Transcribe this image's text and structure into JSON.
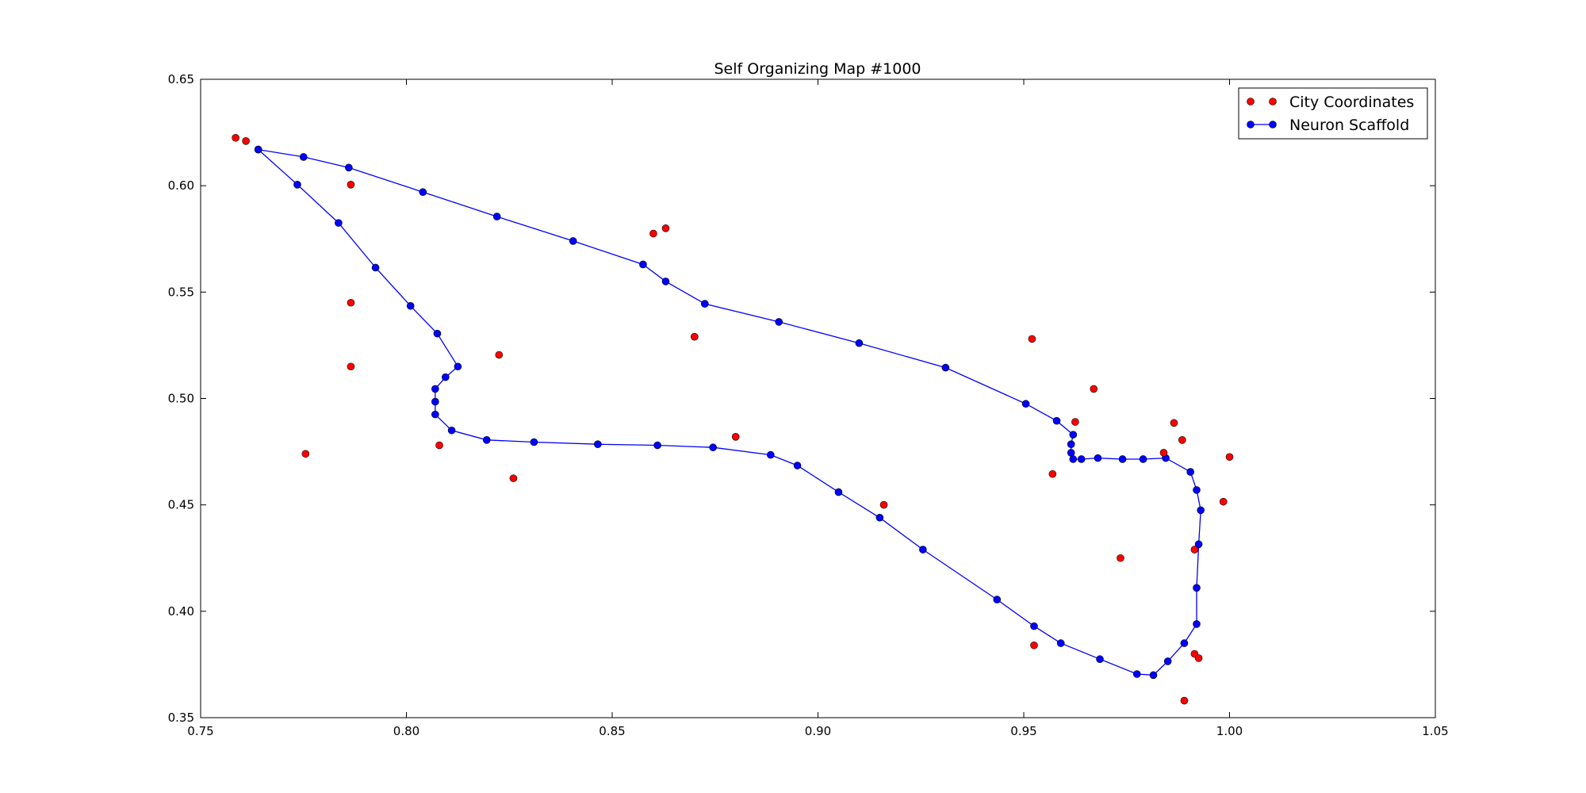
{
  "chart_data": {
    "type": "scatter",
    "title": "Self Organizing Map #1000",
    "xlabel": "",
    "ylabel": "",
    "xlim": [
      0.75,
      1.05
    ],
    "ylim": [
      0.35,
      0.65
    ],
    "x_ticks": [
      "0.75",
      "0.80",
      "0.85",
      "0.90",
      "0.95",
      "1.00",
      "1.05"
    ],
    "y_ticks": [
      "0.35",
      "0.40",
      "0.45",
      "0.50",
      "0.55",
      "0.60",
      "0.65"
    ],
    "grid": false,
    "legend_placement": "top-right",
    "series": [
      {
        "name": "City Coordinates",
        "style": "markers",
        "color": "#ff0000",
        "points": [
          [
            0.7585,
            0.6225
          ],
          [
            0.761,
            0.621
          ],
          [
            0.7865,
            0.6005
          ],
          [
            0.86,
            0.5775
          ],
          [
            0.863,
            0.58
          ],
          [
            0.7865,
            0.545
          ],
          [
            0.7865,
            0.515
          ],
          [
            0.8225,
            0.5205
          ],
          [
            0.87,
            0.529
          ],
          [
            0.7755,
            0.474
          ],
          [
            0.808,
            0.478
          ],
          [
            0.826,
            0.4625
          ],
          [
            0.88,
            0.482
          ],
          [
            0.916,
            0.45
          ],
          [
            0.952,
            0.528
          ],
          [
            0.957,
            0.4645
          ],
          [
            0.9625,
            0.489
          ],
          [
            0.967,
            0.5045
          ],
          [
            0.9735,
            0.425
          ],
          [
            0.984,
            0.4745
          ],
          [
            0.9865,
            0.4885
          ],
          [
            0.9885,
            0.4805
          ],
          [
            0.9915,
            0.429
          ],
          [
            0.9985,
            0.4515
          ],
          [
            1.0,
            0.4725
          ],
          [
            0.9525,
            0.384
          ],
          [
            0.9915,
            0.38
          ],
          [
            0.9925,
            0.378
          ],
          [
            0.989,
            0.358
          ]
        ]
      },
      {
        "name": "Neuron Scaffold",
        "style": "line-markers",
        "color": "#0000ff",
        "points": [
          [
            0.764,
            0.617
          ],
          [
            0.775,
            0.6135
          ],
          [
            0.786,
            0.6085
          ],
          [
            0.804,
            0.597
          ],
          [
            0.822,
            0.5855
          ],
          [
            0.8405,
            0.574
          ],
          [
            0.8575,
            0.563
          ],
          [
            0.863,
            0.555
          ],
          [
            0.8725,
            0.5445
          ],
          [
            0.8905,
            0.536
          ],
          [
            0.91,
            0.526
          ],
          [
            0.931,
            0.5145
          ],
          [
            0.9505,
            0.4975
          ],
          [
            0.958,
            0.4895
          ],
          [
            0.962,
            0.483
          ],
          [
            0.9615,
            0.4785
          ],
          [
            0.9615,
            0.4745
          ],
          [
            0.962,
            0.4715
          ],
          [
            0.964,
            0.4715
          ],
          [
            0.968,
            0.472
          ],
          [
            0.974,
            0.4715
          ],
          [
            0.979,
            0.4715
          ],
          [
            0.9845,
            0.472
          ],
          [
            0.9905,
            0.4655
          ],
          [
            0.992,
            0.457
          ],
          [
            0.993,
            0.4475
          ],
          [
            0.9925,
            0.4315
          ],
          [
            0.992,
            0.411
          ],
          [
            0.992,
            0.394
          ],
          [
            0.989,
            0.385
          ],
          [
            0.985,
            0.3765
          ],
          [
            0.9815,
            0.37
          ],
          [
            0.9775,
            0.3705
          ],
          [
            0.9685,
            0.3775
          ],
          [
            0.959,
            0.385
          ],
          [
            0.9525,
            0.393
          ],
          [
            0.9435,
            0.4055
          ],
          [
            0.9255,
            0.429
          ],
          [
            0.915,
            0.444
          ],
          [
            0.905,
            0.456
          ],
          [
            0.895,
            0.4685
          ],
          [
            0.8885,
            0.4735
          ],
          [
            0.8745,
            0.477
          ],
          [
            0.861,
            0.478
          ],
          [
            0.8465,
            0.4785
          ],
          [
            0.831,
            0.4795
          ],
          [
            0.8195,
            0.4805
          ],
          [
            0.811,
            0.485
          ],
          [
            0.807,
            0.4925
          ],
          [
            0.807,
            0.4985
          ],
          [
            0.807,
            0.5045
          ],
          [
            0.8095,
            0.51
          ],
          [
            0.8125,
            0.515
          ],
          [
            0.8075,
            0.5305
          ],
          [
            0.801,
            0.5435
          ],
          [
            0.7925,
            0.5615
          ],
          [
            0.7835,
            0.5825
          ],
          [
            0.7735,
            0.6005
          ],
          [
            0.764,
            0.617
          ]
        ]
      }
    ]
  }
}
